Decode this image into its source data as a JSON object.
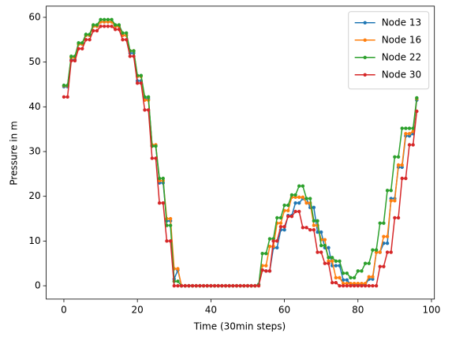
{
  "chart_data": {
    "type": "line",
    "xlabel": "Time (30min steps)",
    "ylabel": "Pressure in m",
    "x": [
      0,
      1,
      2,
      3,
      4,
      5,
      6,
      7,
      8,
      9,
      10,
      11,
      12,
      13,
      14,
      15,
      16,
      17,
      18,
      19,
      20,
      21,
      22,
      23,
      24,
      25,
      26,
      27,
      28,
      29,
      30,
      31,
      32,
      33,
      34,
      35,
      36,
      37,
      38,
      39,
      40,
      41,
      42,
      43,
      44,
      45,
      46,
      47,
      48,
      49,
      50,
      51,
      52,
      53,
      54,
      55,
      56,
      57,
      58,
      59,
      60,
      61,
      62,
      63,
      64,
      65,
      66,
      67,
      68,
      69,
      70,
      71,
      72,
      73,
      74,
      75,
      76,
      77,
      78,
      79,
      80,
      81,
      82,
      83,
      84,
      85,
      86,
      87,
      88,
      89,
      90,
      91,
      92,
      93,
      94,
      95,
      96
    ],
    "series": [
      {
        "name": "Node 13",
        "color": "#1f77b4",
        "values": [
          44.5,
          44.5,
          50.5,
          50.5,
          54,
          54,
          56,
          56,
          58,
          58,
          59,
          59,
          59,
          59,
          58,
          58,
          56,
          56,
          52,
          52,
          45.8,
          45.8,
          41.8,
          41.8,
          31.3,
          31.3,
          23,
          23,
          14.5,
          14.5,
          1.5,
          3.5,
          0,
          0,
          0,
          0,
          0,
          0,
          0,
          0,
          0,
          0,
          0,
          0,
          0,
          0,
          0,
          0,
          0,
          0,
          0,
          0,
          0,
          0.3,
          3.5,
          3.3,
          3.3,
          8.5,
          8.5,
          12.5,
          12.5,
          15.7,
          15.7,
          18.5,
          18.5,
          19.5,
          19.5,
          17.5,
          17.5,
          12,
          12,
          8.5,
          8.5,
          4.5,
          4.5,
          4.5,
          1.3,
          1.3,
          0.3,
          0.3,
          0.3,
          0.3,
          0.3,
          1.5,
          1.5,
          7.5,
          7.5,
          9.5,
          9.5,
          19.5,
          19.5,
          26.5,
          26.5,
          33.5,
          33.5,
          34,
          41.5
        ]
      },
      {
        "name": "Node 16",
        "color": "#ff7f0e",
        "values": [
          44.7,
          44.7,
          51,
          51,
          54,
          54,
          56,
          56,
          58,
          58,
          59,
          59,
          59,
          59,
          58,
          58,
          56,
          56,
          52.5,
          52.5,
          46.8,
          46.8,
          41.5,
          41.5,
          31.5,
          31.5,
          23.5,
          23.5,
          15,
          15,
          3.8,
          3.8,
          0,
          0,
          0,
          0,
          0,
          0,
          0,
          0,
          0,
          0,
          0,
          0,
          0,
          0,
          0,
          0,
          0,
          0,
          0,
          0,
          0,
          0.2,
          4.5,
          4.5,
          8.8,
          8.8,
          14,
          14,
          16.8,
          16.8,
          19.8,
          19.8,
          19.8,
          19.8,
          18.5,
          18.5,
          13.5,
          13.5,
          10.3,
          10.3,
          5.5,
          5.5,
          1.8,
          1.8,
          0.5,
          0.5,
          0.5,
          0.5,
          0.5,
          0.5,
          0.5,
          2,
          2,
          7.5,
          7.5,
          11,
          11,
          19,
          19,
          27,
          27,
          34,
          34,
          34.5,
          41.8
        ]
      },
      {
        "name": "Node 22",
        "color": "#2ca02c",
        "values": [
          44.8,
          44.8,
          51.3,
          51.3,
          54.3,
          54.3,
          56.2,
          56.2,
          58.3,
          58.3,
          59.5,
          59.5,
          59.5,
          59.5,
          58.3,
          58.3,
          56.5,
          56.5,
          52.5,
          52.5,
          47,
          47,
          42.2,
          42.2,
          31.2,
          31.2,
          24,
          24,
          13.5,
          13.5,
          1,
          1,
          0,
          0,
          0,
          0,
          0,
          0,
          0,
          0,
          0,
          0,
          0,
          0,
          0,
          0,
          0,
          0,
          0,
          0,
          0,
          0,
          0,
          0.2,
          7.2,
          7.2,
          10.5,
          10.5,
          15.2,
          15.2,
          18,
          18,
          20.3,
          20.3,
          22.3,
          22.3,
          19.5,
          19.5,
          14.5,
          14.5,
          9,
          9,
          6.3,
          6.3,
          5.5,
          5.5,
          2.8,
          2.8,
          1.8,
          1.8,
          3.3,
          3.3,
          5,
          5,
          8,
          8,
          14,
          14,
          21.3,
          21.3,
          28.8,
          28.8,
          35.2,
          35.2,
          35.2,
          35.2,
          42
        ]
      },
      {
        "name": "Node 30",
        "color": "#d62728",
        "values": [
          42.2,
          42.2,
          50.3,
          50.3,
          53,
          53,
          55,
          55,
          57,
          57,
          58,
          58,
          58,
          58,
          57.3,
          57.3,
          55,
          55,
          51.3,
          51.3,
          45.3,
          45.3,
          39.3,
          39.3,
          28.5,
          28.5,
          18.5,
          18.5,
          10,
          10,
          0,
          0,
          0,
          0,
          0,
          0,
          0,
          0,
          0,
          0,
          0,
          0,
          0,
          0,
          0,
          0,
          0,
          0,
          0,
          0,
          0,
          0,
          0,
          0,
          3.5,
          3.3,
          3.3,
          10,
          10,
          13.2,
          13.2,
          15.5,
          15.5,
          16.6,
          16.6,
          13,
          13,
          12.5,
          12.5,
          7.5,
          7.5,
          5,
          5,
          0.7,
          0.7,
          0,
          0,
          0,
          0,
          0,
          0,
          0,
          0,
          0,
          0,
          0,
          4.3,
          4.3,
          7.5,
          7.5,
          15.2,
          15.2,
          24,
          24,
          31.5,
          31.5,
          39
        ]
      }
    ],
    "xlim": [
      -4.8,
      100.8
    ],
    "xticks": [
      0,
      20,
      40,
      60,
      80,
      100
    ],
    "ylim": [
      -2.975,
      62.5
    ],
    "yticks": [
      0,
      10,
      20,
      30,
      40,
      50,
      60
    ],
    "legend": "upper right"
  }
}
